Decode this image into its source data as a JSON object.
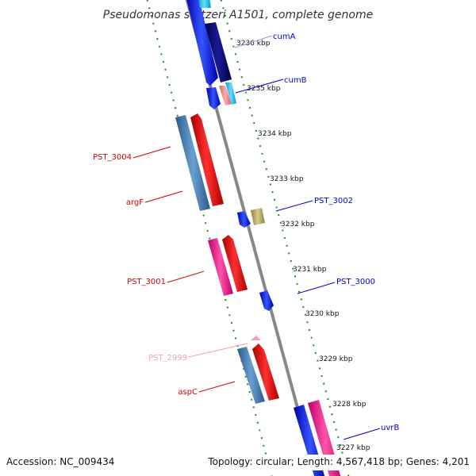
{
  "title": "Pseudomonas stutzeri A1501, complete genome",
  "footer": {
    "accession": "Accession: NC_009434",
    "topology": "Topology: circular; Length: 4,567,418 bp; Genes: 4,201"
  },
  "colors": {
    "backbone": "#888888",
    "tick": "#1e8a1e",
    "forward_label": "#0000cc",
    "reverse_label": "#cc0000",
    "faint_label": "#f4a0c0"
  },
  "scale_ticks": [
    "3236 kbp",
    "3235 kbp",
    "3234 kbp",
    "3233 kbp",
    "3232 kbp",
    "3231 kbp",
    "3230 kbp",
    "3229 kbp",
    "3228 kbp",
    "3227 kbp"
  ],
  "gene_labels": {
    "cumA": "cumA",
    "cumB": "cumB",
    "PST_3004": "PST_3004",
    "argF": "argF",
    "PST_3002": "PST_3002",
    "PST_3001": "PST_3001",
    "PST_3000": "PST_3000",
    "PST_2999": "PST_2999",
    "aspC": "aspC",
    "uvrB": "uvrB"
  }
}
